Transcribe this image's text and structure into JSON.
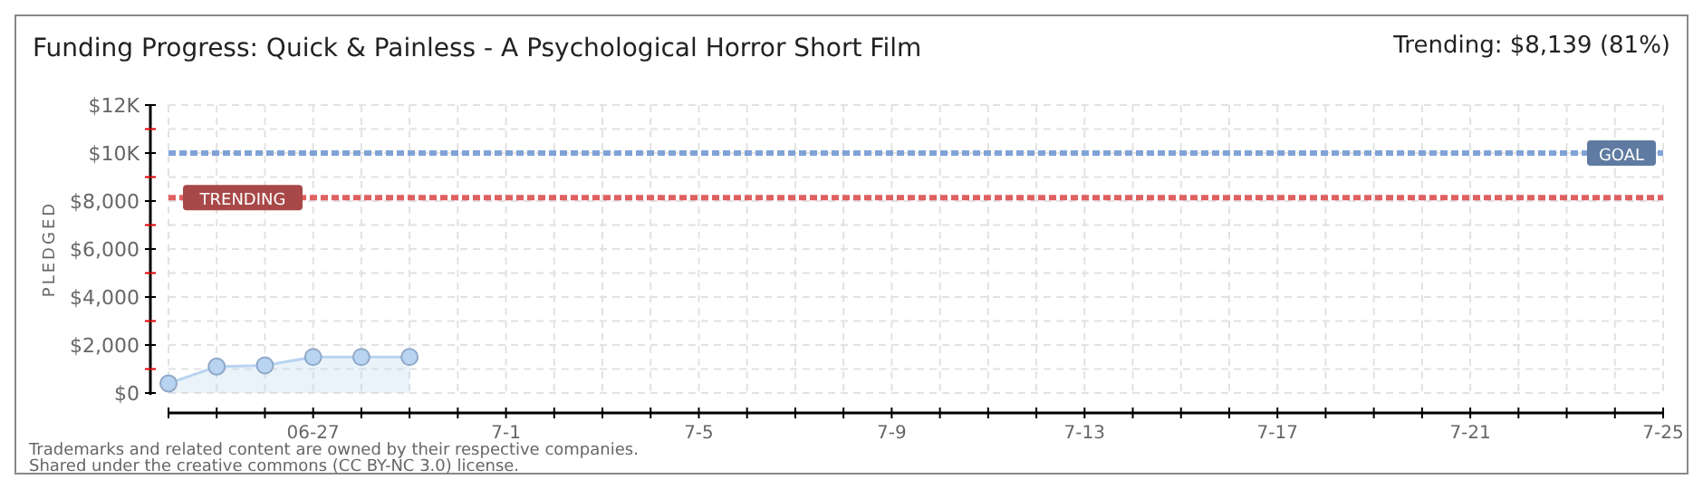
{
  "chart_data": {
    "type": "area",
    "title": "Funding Progress: Quick & Painless - A Psychological Horror Short Film",
    "subtitle": "Trending: $8,139 (81%)",
    "ylabel": "PLEDGED",
    "x": [
      "--06-24",
      "--06-25",
      "--06-26",
      "--06-27",
      "--06-28",
      "--06-29"
    ],
    "series": [
      {
        "color": "#b8d4f0",
        "values": [
          400,
          1100,
          1150,
          1500,
          1500,
          1500
        ]
      }
    ],
    "xlim": [
      "--06-24",
      "--07-25"
    ],
    "xticks": [
      {
        "value": "--06-27",
        "label": "06-27"
      },
      {
        "value": "--07-01",
        "label": "7-1"
      },
      {
        "value": "--07-05",
        "label": "7-5"
      },
      {
        "value": "--07-09",
        "label": "7-9"
      },
      {
        "value": "--07-13",
        "label": "7-13"
      },
      {
        "value": "--07-17",
        "label": "7-17"
      },
      {
        "value": "--07-21",
        "label": "7-21"
      },
      {
        "value": "--07-25",
        "label": "7-25"
      }
    ],
    "ylim": [
      0,
      12000
    ],
    "yticks": [
      {
        "value": 0,
        "label": "$0"
      },
      {
        "value": 1000,
        "label": null
      },
      {
        "value": 2000,
        "label": "$2,000"
      },
      {
        "value": 3000,
        "label": null
      },
      {
        "value": 4000,
        "label": "$4,000"
      },
      {
        "value": 5000,
        "label": null
      },
      {
        "value": 6000,
        "label": "$6,000"
      },
      {
        "value": 7000,
        "label": null
      },
      {
        "value": 8000,
        "label": "$8,000"
      },
      {
        "value": 9000,
        "label": null
      },
      {
        "value": 10000,
        "label": "$10K"
      },
      {
        "value": 11000,
        "label": null
      },
      {
        "value": 12000,
        "label": "$12K"
      }
    ],
    "ref_lines": [
      {
        "axis": "y",
        "value": 10000,
        "label": "GOAL",
        "color": "#7fa3d6",
        "line_style": "dashed"
      },
      {
        "axis": "y",
        "value": 8139,
        "label": "TRENDING",
        "color": "#e06060",
        "line_style": "dashed"
      }
    ],
    "grid": true,
    "marker": "circle",
    "line_style": "solid",
    "annotations": [
      "Trademarks and related content are owned by their respective companies.",
      "Shared under the creative commons (CC BY-NC 3.0) license."
    ]
  }
}
